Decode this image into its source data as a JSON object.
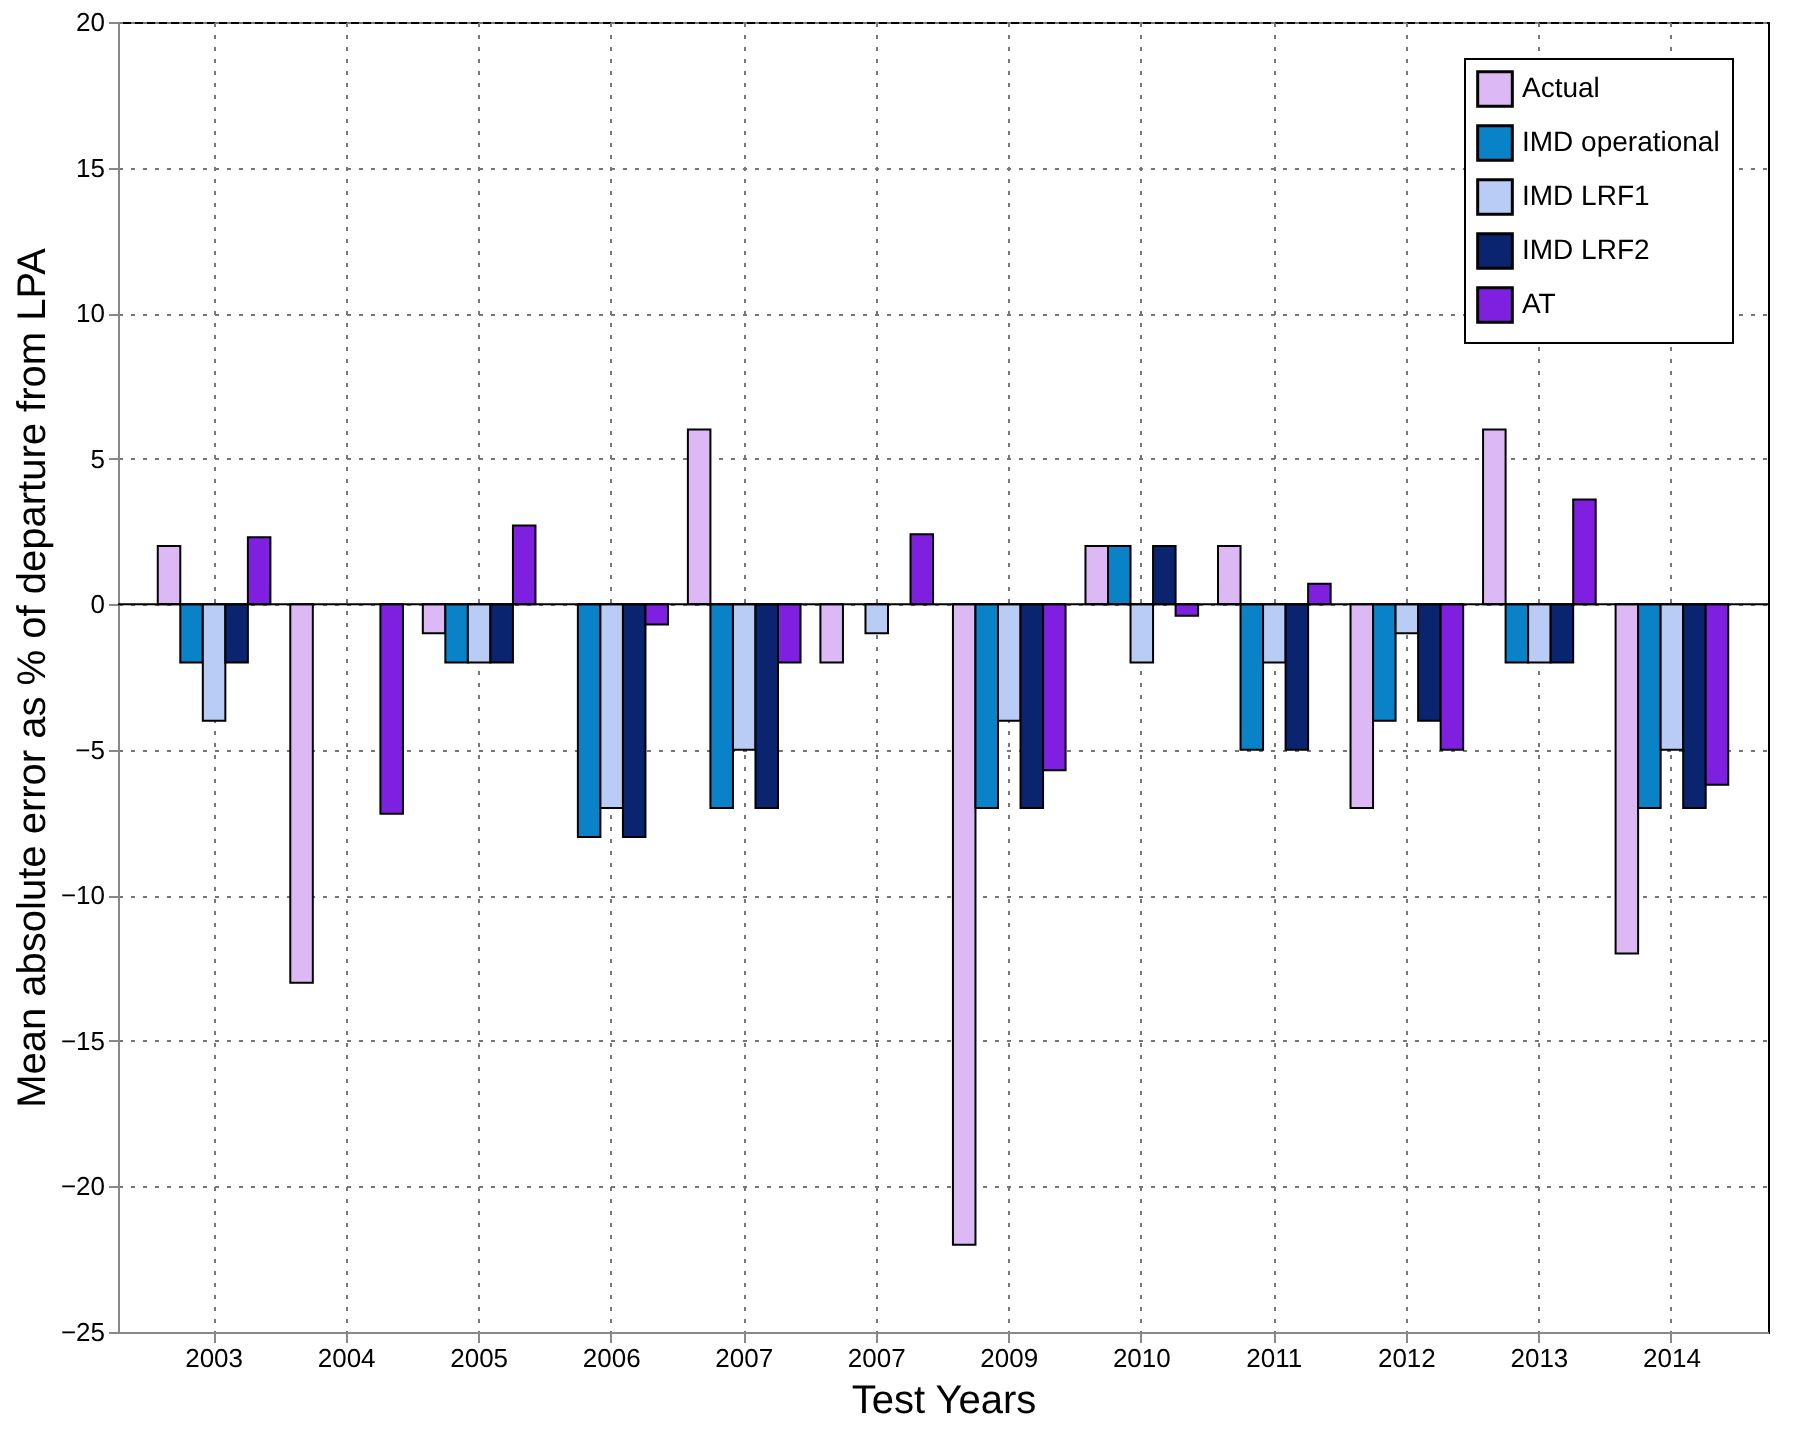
{
  "chart_data": {
    "type": "bar",
    "xlabel": "Test Years",
    "ylabel": "Mean absolute error as % of departure from LPA",
    "categories": [
      "2003",
      "2004",
      "2005",
      "2006",
      "2007",
      "2007",
      "2009",
      "2010",
      "2011",
      "2012",
      "2013",
      "2014"
    ],
    "series": [
      {
        "name": "Actual",
        "color": "#dcb8f5",
        "values": [
          2,
          -13,
          -1,
          null,
          6,
          -2,
          -22,
          2,
          2,
          -7,
          6,
          -12
        ]
      },
      {
        "name": "IMD operational",
        "color": "#0a82c8",
        "values": [
          -2,
          null,
          -2,
          -8,
          -7,
          null,
          -7,
          2,
          -5,
          -4,
          -2,
          -7
        ]
      },
      {
        "name": "IMD LRF1",
        "color": "#b8ccf5",
        "values": [
          -4,
          null,
          -2,
          -7,
          -5,
          -1,
          -4,
          -2,
          -2,
          -1,
          -2,
          -5
        ]
      },
      {
        "name": "IMD LRF2",
        "color": "#0a2470",
        "values": [
          -2,
          null,
          -2,
          -8,
          -7,
          null,
          -7,
          2,
          -5,
          -4,
          -2,
          -7
        ]
      },
      {
        "name": "AT",
        "color": "#7f1fe0",
        "values": [
          2.3,
          -7.2,
          2.7,
          -0.7,
          -2,
          2.4,
          -5.7,
          -0.4,
          0.7,
          -5,
          3.6,
          -6.2
        ]
      }
    ],
    "ylim": [
      -25,
      20
    ],
    "yticks": [
      -25,
      -20,
      -15,
      -10,
      -5,
      0,
      5,
      10,
      15,
      20
    ],
    "grid": true,
    "legend": "top right"
  }
}
